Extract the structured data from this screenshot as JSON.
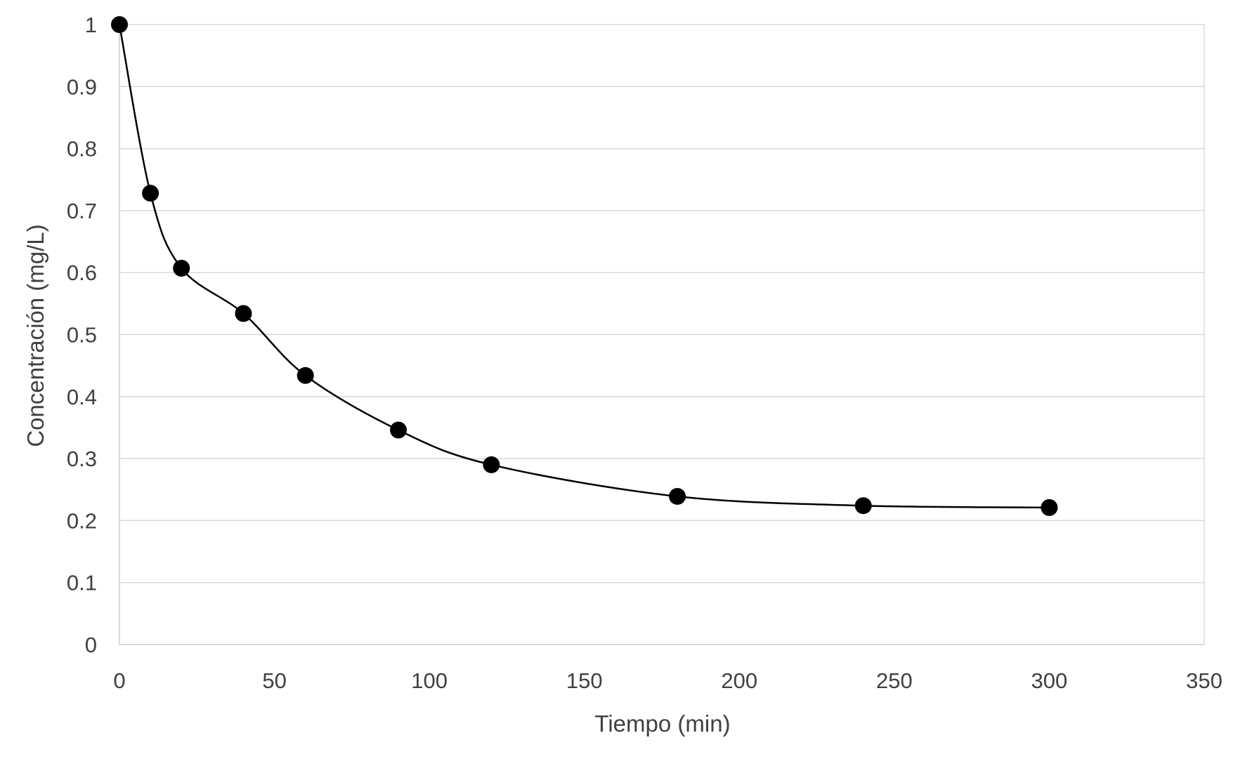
{
  "chart_data": {
    "type": "scatter",
    "title": "",
    "xlabel": "Tiempo (min)",
    "ylabel": "Concentración (mg/L)",
    "xlim": [
      0,
      350
    ],
    "ylim": [
      0,
      1
    ],
    "xticks": [
      0,
      50,
      100,
      150,
      200,
      250,
      300,
      350
    ],
    "yticks": [
      0,
      0.1,
      0.2,
      0.3,
      0.4,
      0.5,
      0.6,
      0.7,
      0.8,
      0.9,
      1
    ],
    "xtick_labels": [
      "0",
      "50",
      "100",
      "150",
      "200",
      "250",
      "300",
      "350"
    ],
    "ytick_labels": [
      "0",
      "0.1",
      "0.2",
      "0.3",
      "0.4",
      "0.5",
      "0.6",
      "0.7",
      "0.8",
      "0.9",
      "1"
    ],
    "grid": "horizontal",
    "series": [
      {
        "name": "Concentración",
        "smooth_line": true,
        "x": [
          0,
          10,
          20,
          40,
          60,
          90,
          120,
          180,
          240,
          300
        ],
        "y": [
          1.0,
          0.728,
          0.607,
          0.534,
          0.434,
          0.346,
          0.29,
          0.239,
          0.224,
          0.221
        ]
      }
    ],
    "colors": {
      "marker": "#000000",
      "line": "#000000",
      "grid": "#d9d9d9",
      "text": "#404040"
    }
  }
}
